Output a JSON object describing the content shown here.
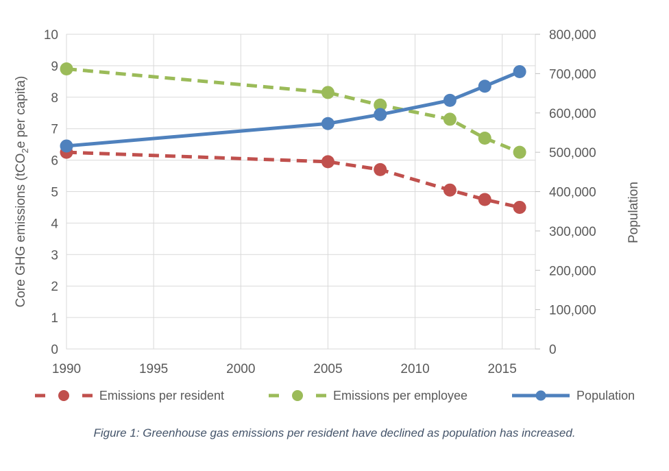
{
  "chart_data": {
    "type": "line",
    "x": [
      1990,
      2005,
      2008,
      2012,
      2014,
      2016
    ],
    "x_axis": {
      "ticks": [
        1990,
        1995,
        2000,
        2005,
        2010,
        2015
      ],
      "range": [
        1990,
        2016.9
      ],
      "grid": true
    },
    "y_left_axis": {
      "title_parts": [
        "Core GHG emissions (tCO",
        "2",
        "e per capita)"
      ],
      "range": [
        0,
        10
      ],
      "ticks": [
        0,
        1,
        2,
        3,
        4,
        5,
        6,
        7,
        8,
        9,
        10
      ],
      "grid": true
    },
    "y_right_axis": {
      "title": "Population",
      "range": [
        0,
        800000
      ],
      "ticks": [
        0,
        100000,
        200000,
        300000,
        400000,
        500000,
        600000,
        700000,
        800000
      ],
      "tick_labels": [
        "0",
        "100,000",
        "200,000",
        "300,000",
        "400,000",
        "500,000",
        "600,000",
        "700,000",
        "800,000"
      ]
    },
    "series": [
      {
        "name": "Emissions per resident",
        "axis": "left",
        "color": "#C0504D",
        "line_style": "dashed",
        "marker": "circle",
        "values": [
          6.25,
          5.95,
          5.7,
          5.05,
          4.75,
          4.5
        ]
      },
      {
        "name": "Emissions per employee",
        "axis": "left",
        "color": "#9BBB59",
        "line_style": "dashed",
        "marker": "circle",
        "values": [
          8.9,
          8.15,
          7.75,
          7.3,
          6.7,
          6.25
        ]
      },
      {
        "name": "Population",
        "axis": "right",
        "color": "#4F81BD",
        "line_style": "solid",
        "marker": "circle",
        "values": [
          516000,
          573000,
          596000,
          632000,
          668000,
          705000
        ]
      }
    ],
    "legend_position": "bottom",
    "grid_on": true
  },
  "caption": {
    "text": "Figure 1: Greenhouse gas emissions per resident have declined as population has increased."
  }
}
